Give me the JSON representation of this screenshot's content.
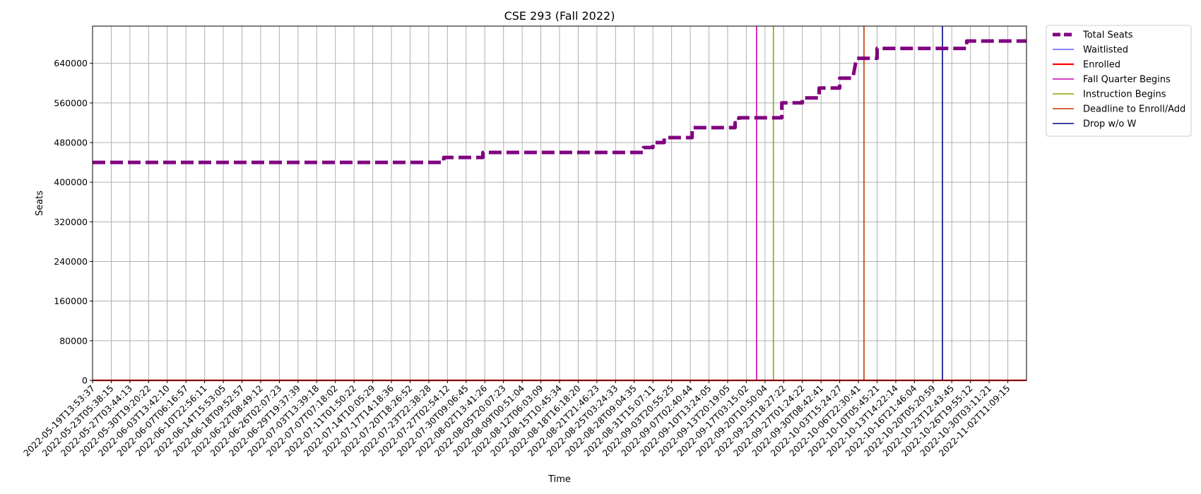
{
  "chart_data": {
    "type": "line",
    "title": "CSE 293 (Fall 2022)",
    "xlabel": "Time",
    "ylabel": "Seats",
    "ylim": [
      0,
      715000
    ],
    "yticks": [
      0,
      80000,
      160000,
      240000,
      320000,
      400000,
      480000,
      560000,
      640000
    ],
    "grid": true,
    "legend_position": "outside-top-right",
    "x_categories": [
      "2022-05-19T13:53:37",
      "2022-05-23T05:38:15",
      "2022-05-27T03:44:13",
      "2022-05-30T19:20:22",
      "2022-06-03T13:42:10",
      "2022-06-07T06:16:57",
      "2022-06-10T22:56:11",
      "2022-06-14T15:53:05",
      "2022-06-18T09:52:57",
      "2022-06-22T08:49:12",
      "2022-06-26T02:07:23",
      "2022-06-29T19:37:39",
      "2022-07-03T13:39:18",
      "2022-07-07T07:18:02",
      "2022-07-11T01:50:22",
      "2022-07-14T10:05:29",
      "2022-07-17T14:18:36",
      "2022-07-20T18:26:52",
      "2022-07-23T22:38:28",
      "2022-07-27T02:54:12",
      "2022-07-30T09:06:45",
      "2022-08-02T13:41:26",
      "2022-08-05T20:07:23",
      "2022-08-09T00:51:04",
      "2022-08-12T06:03:09",
      "2022-08-15T10:45:34",
      "2022-08-18T16:18:20",
      "2022-08-21T21:46:23",
      "2022-08-25T03:24:33",
      "2022-08-28T09:04:35",
      "2022-08-31T15:07:11",
      "2022-09-03T20:55:25",
      "2022-09-07T02:40:44",
      "2022-09-10T13:24:05",
      "2022-09-13T20:19:05",
      "2022-09-17T03:15:02",
      "2022-09-20T10:50:04",
      "2022-09-23T18:27:22",
      "2022-09-27T01:24:22",
      "2022-09-30T08:42:41",
      "2022-10-03T15:24:27",
      "2022-10-06T22:30:41",
      "2022-10-10T05:45:21",
      "2022-10-13T14:22:14",
      "2022-10-16T21:46:04",
      "2022-10-20T05:20:59",
      "2022-10-23T12:43:45",
      "2022-10-26T19:55:12",
      "2022-10-30T03:11:21",
      "2022-11-02T11:09:15"
    ],
    "x_index_max": 50,
    "series": [
      {
        "name": "Total Seats",
        "color": "#800080",
        "style": "dashed-thick",
        "points": [
          [
            0,
            440000
          ],
          [
            18.8,
            440000
          ],
          [
            18.8,
            450000
          ],
          [
            20.9,
            450000
          ],
          [
            20.9,
            460000
          ],
          [
            29.5,
            460000
          ],
          [
            29.5,
            470000
          ],
          [
            30.0,
            470000
          ],
          [
            30.0,
            480000
          ],
          [
            30.6,
            480000
          ],
          [
            30.6,
            490000
          ],
          [
            32.1,
            490000
          ],
          [
            32.1,
            510000
          ],
          [
            34.4,
            510000
          ],
          [
            34.4,
            520000
          ],
          [
            34.6,
            520000
          ],
          [
            34.6,
            530000
          ],
          [
            36.9,
            530000
          ],
          [
            36.9,
            560000
          ],
          [
            38.0,
            560000
          ],
          [
            38.0,
            570000
          ],
          [
            38.9,
            570000
          ],
          [
            38.9,
            590000
          ],
          [
            40.0,
            590000
          ],
          [
            40.0,
            610000
          ],
          [
            40.7,
            610000
          ],
          [
            40.9,
            650000
          ],
          [
            42.0,
            650000
          ],
          [
            42.0,
            670000
          ],
          [
            46.8,
            670000
          ],
          [
            46.8,
            685000
          ],
          [
            50,
            685000
          ]
        ]
      },
      {
        "name": "Waitlisted",
        "color": "#3f3fff",
        "style": "thin",
        "points": [
          [
            0,
            0
          ],
          [
            50,
            0
          ]
        ]
      },
      {
        "name": "Enrolled",
        "color": "#ff0000",
        "style": "thick",
        "points": [
          [
            0,
            0
          ],
          [
            50,
            0
          ]
        ]
      }
    ],
    "events": [
      {
        "name": "Fall Quarter Begins",
        "color": "#cc00aa",
        "x": 35.55
      },
      {
        "name": "Instruction Begins",
        "color": "#88aa00",
        "x": 36.45
      },
      {
        "name": "Deadline to Enroll/Add",
        "color": "#cc3300",
        "x": 41.3
      },
      {
        "name": "Drop w/o W",
        "color": "#000088",
        "x": 45.5
      }
    ],
    "legend": [
      {
        "label": "Total Seats",
        "color": "#800080",
        "style": "dashed-thick"
      },
      {
        "label": "Waitlisted",
        "color": "#3f3fff",
        "style": "thin"
      },
      {
        "label": "Enrolled",
        "color": "#ff0000",
        "style": "thick"
      },
      {
        "label": "Fall Quarter Begins",
        "color": "#cc00aa",
        "style": "line"
      },
      {
        "label": "Instruction Begins",
        "color": "#88aa00",
        "style": "line"
      },
      {
        "label": "Deadline to Enroll/Add",
        "color": "#cc3300",
        "style": "line"
      },
      {
        "label": "Drop w/o W",
        "color": "#000088",
        "style": "line"
      }
    ]
  }
}
